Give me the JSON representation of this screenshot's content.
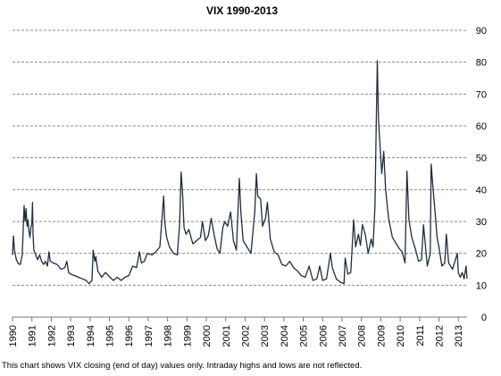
{
  "chart_data": {
    "type": "line",
    "title": "VIX 1990-2013",
    "xlabel": "",
    "ylabel": "",
    "caption": "This chart shows VIX closing (end of day) values only. Intraday highs and lows are not reflected.",
    "ylim": [
      0,
      90
    ],
    "yticks": [
      0,
      10,
      20,
      30,
      40,
      50,
      60,
      70,
      80,
      90
    ],
    "xlim": [
      1990.0,
      2013.45
    ],
    "xtick_labels": [
      "1990",
      "1991",
      "1992",
      "1993",
      "1994",
      "1995",
      "1996",
      "1997",
      "1998",
      "1999",
      "2000",
      "2001",
      "2002",
      "2003",
      "2004",
      "2005",
      "2006",
      "2007",
      "2008",
      "2009",
      "2010",
      "2011",
      "2012",
      "2013"
    ],
    "grid": "horizontal dashed",
    "line_color": "#1f2d3d",
    "series": [
      {
        "values": [
          [
            1990.0,
            19.5
          ],
          [
            1990.05,
            25.5
          ],
          [
            1990.1,
            21.0
          ],
          [
            1990.2,
            18.0
          ],
          [
            1990.3,
            16.8
          ],
          [
            1990.4,
            16.5
          ],
          [
            1990.5,
            19.5
          ],
          [
            1990.55,
            27.0
          ],
          [
            1990.6,
            35.0
          ],
          [
            1990.65,
            30.0
          ],
          [
            1990.7,
            34.0
          ],
          [
            1990.75,
            28.5
          ],
          [
            1990.8,
            30.5
          ],
          [
            1990.85,
            27.0
          ],
          [
            1990.9,
            25.0
          ],
          [
            1990.95,
            28.0
          ],
          [
            1991.0,
            29.5
          ],
          [
            1991.03,
            36.0
          ],
          [
            1991.06,
            26.0
          ],
          [
            1991.1,
            21.0
          ],
          [
            1991.2,
            19.5
          ],
          [
            1991.3,
            18.0
          ],
          [
            1991.4,
            19.5
          ],
          [
            1991.5,
            17.5
          ],
          [
            1991.6,
            16.5
          ],
          [
            1991.7,
            17.5
          ],
          [
            1991.8,
            16.0
          ],
          [
            1991.88,
            20.5
          ],
          [
            1991.95,
            17.5
          ],
          [
            1992.1,
            17.0
          ],
          [
            1992.3,
            16.5
          ],
          [
            1992.5,
            15.0
          ],
          [
            1992.7,
            15.5
          ],
          [
            1992.8,
            17.5
          ],
          [
            1992.9,
            14.0
          ],
          [
            1993.0,
            13.5
          ],
          [
            1993.2,
            13.0
          ],
          [
            1993.4,
            12.5
          ],
          [
            1993.6,
            12.0
          ],
          [
            1993.8,
            11.5
          ],
          [
            1993.95,
            10.5
          ],
          [
            1994.1,
            11.5
          ],
          [
            1994.16,
            21.0
          ],
          [
            1994.25,
            17.5
          ],
          [
            1994.3,
            19.0
          ],
          [
            1994.4,
            14.5
          ],
          [
            1994.6,
            12.5
          ],
          [
            1994.8,
            14.0
          ],
          [
            1994.95,
            13.0
          ],
          [
            1995.2,
            11.5
          ],
          [
            1995.4,
            12.5
          ],
          [
            1995.6,
            11.5
          ],
          [
            1995.8,
            12.5
          ],
          [
            1996.0,
            13.0
          ],
          [
            1996.2,
            16.0
          ],
          [
            1996.4,
            15.5
          ],
          [
            1996.55,
            20.5
          ],
          [
            1996.65,
            17.0
          ],
          [
            1996.8,
            17.5
          ],
          [
            1996.95,
            20.0
          ],
          [
            1997.2,
            19.5
          ],
          [
            1997.4,
            20.5
          ],
          [
            1997.6,
            22.0
          ],
          [
            1997.8,
            38.0
          ],
          [
            1997.85,
            30.0
          ],
          [
            1997.95,
            25.0
          ],
          [
            1998.1,
            22.0
          ],
          [
            1998.3,
            20.0
          ],
          [
            1998.5,
            19.5
          ],
          [
            1998.62,
            29.0
          ],
          [
            1998.7,
            45.5
          ],
          [
            1998.78,
            38.0
          ],
          [
            1998.85,
            28.0
          ],
          [
            1998.95,
            26.0
          ],
          [
            1999.1,
            27.5
          ],
          [
            1999.3,
            23.0
          ],
          [
            1999.5,
            24.0
          ],
          [
            1999.7,
            25.0
          ],
          [
            1999.8,
            30.0
          ],
          [
            1999.95,
            24.0
          ],
          [
            2000.1,
            25.5
          ],
          [
            2000.25,
            31.0
          ],
          [
            2000.4,
            26.0
          ],
          [
            2000.55,
            21.5
          ],
          [
            2000.7,
            20.0
          ],
          [
            2000.85,
            28.0
          ],
          [
            2000.95,
            30.0
          ],
          [
            2001.1,
            28.5
          ],
          [
            2001.25,
            33.0
          ],
          [
            2001.4,
            24.0
          ],
          [
            2001.55,
            21.0
          ],
          [
            2001.7,
            43.5
          ],
          [
            2001.78,
            33.0
          ],
          [
            2001.9,
            24.0
          ],
          [
            2002.1,
            22.0
          ],
          [
            2002.3,
            20.0
          ],
          [
            2002.5,
            33.0
          ],
          [
            2002.58,
            45.0
          ],
          [
            2002.65,
            38.0
          ],
          [
            2002.8,
            37.0
          ],
          [
            2002.9,
            28.5
          ],
          [
            2003.05,
            31.0
          ],
          [
            2003.15,
            36.0
          ],
          [
            2003.3,
            24.5
          ],
          [
            2003.5,
            20.5
          ],
          [
            2003.7,
            19.5
          ],
          [
            2003.9,
            16.5
          ],
          [
            2004.1,
            16.0
          ],
          [
            2004.3,
            17.5
          ],
          [
            2004.5,
            15.5
          ],
          [
            2004.7,
            14.5
          ],
          [
            2004.9,
            13.0
          ],
          [
            2005.1,
            12.5
          ],
          [
            2005.3,
            16.0
          ],
          [
            2005.5,
            11.5
          ],
          [
            2005.7,
            12.0
          ],
          [
            2005.85,
            16.0
          ],
          [
            2006.0,
            11.5
          ],
          [
            2006.2,
            12.0
          ],
          [
            2006.4,
            20.0
          ],
          [
            2006.5,
            15.5
          ],
          [
            2006.7,
            12.0
          ],
          [
            2006.9,
            11.0
          ],
          [
            2007.1,
            10.5
          ],
          [
            2007.16,
            18.5
          ],
          [
            2007.3,
            13.5
          ],
          [
            2007.45,
            14.0
          ],
          [
            2007.6,
            30.5
          ],
          [
            2007.7,
            22.0
          ],
          [
            2007.85,
            26.0
          ],
          [
            2007.95,
            22.5
          ],
          [
            2008.05,
            29.0
          ],
          [
            2008.2,
            26.0
          ],
          [
            2008.35,
            20.0
          ],
          [
            2008.5,
            24.5
          ],
          [
            2008.6,
            22.0
          ],
          [
            2008.7,
            35.0
          ],
          [
            2008.76,
            59.0
          ],
          [
            2008.82,
            80.5
          ],
          [
            2008.88,
            62.0
          ],
          [
            2008.95,
            55.0
          ],
          [
            2009.05,
            45.0
          ],
          [
            2009.15,
            52.0
          ],
          [
            2009.25,
            40.0
          ],
          [
            2009.4,
            31.0
          ],
          [
            2009.6,
            25.0
          ],
          [
            2009.8,
            23.0
          ],
          [
            2009.95,
            21.5
          ],
          [
            2010.1,
            20.5
          ],
          [
            2010.25,
            17.0
          ],
          [
            2010.35,
            45.8
          ],
          [
            2010.45,
            30.5
          ],
          [
            2010.6,
            25.0
          ],
          [
            2010.8,
            21.0
          ],
          [
            2010.95,
            17.5
          ],
          [
            2011.1,
            18.0
          ],
          [
            2011.2,
            29.0
          ],
          [
            2011.4,
            16.0
          ],
          [
            2011.55,
            20.0
          ],
          [
            2011.6,
            48.0
          ],
          [
            2011.7,
            40.0
          ],
          [
            2011.8,
            33.0
          ],
          [
            2011.9,
            25.0
          ],
          [
            2012.0,
            22.0
          ],
          [
            2012.15,
            16.0
          ],
          [
            2012.3,
            17.0
          ],
          [
            2012.38,
            26.0
          ],
          [
            2012.5,
            17.0
          ],
          [
            2012.7,
            15.0
          ],
          [
            2012.85,
            18.0
          ],
          [
            2012.95,
            20.0
          ],
          [
            2013.0,
            14.0
          ],
          [
            2013.1,
            12.5
          ],
          [
            2013.2,
            14.0
          ],
          [
            2013.3,
            12.0
          ],
          [
            2013.4,
            16.0
          ],
          [
            2013.45,
            12.0
          ]
        ]
      }
    ]
  }
}
